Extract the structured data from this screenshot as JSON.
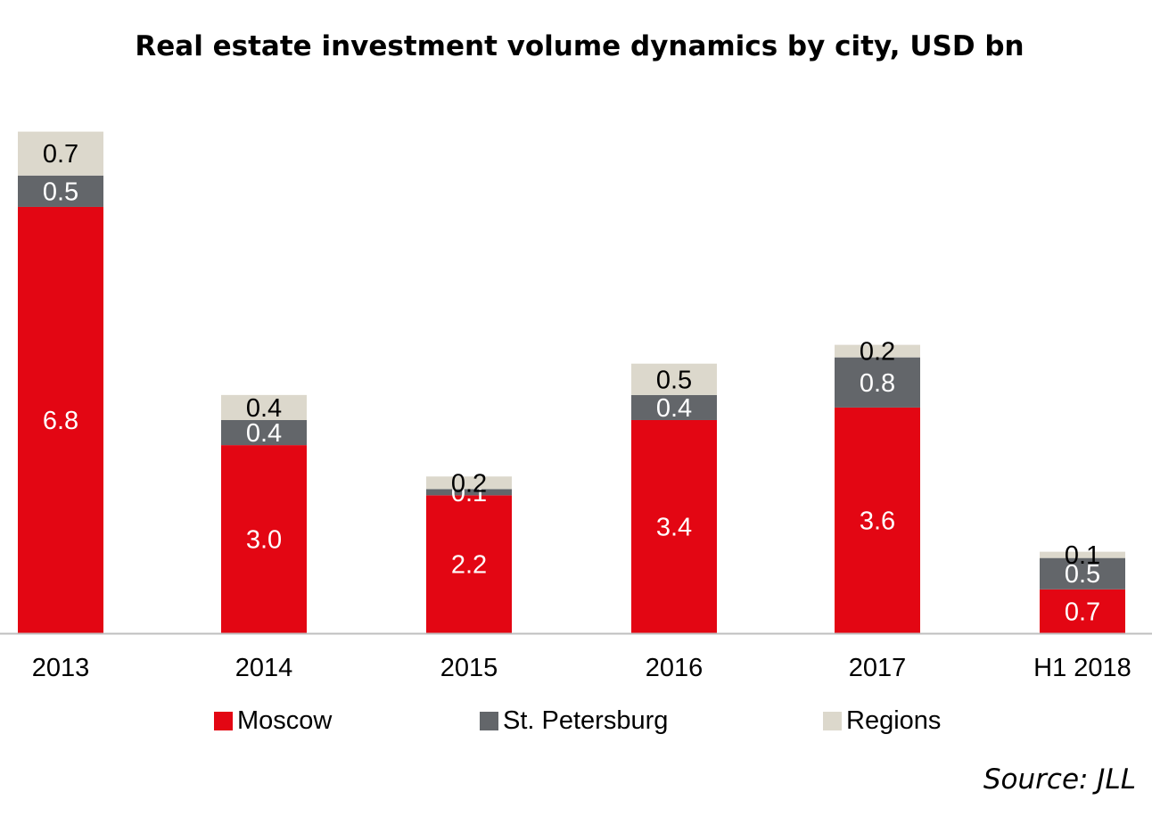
{
  "title": "Real estate investment volume dynamics by city, USD bn",
  "source": "Source: JLL",
  "colors": {
    "Moscow": "#e30613",
    "St. Petersburg": "#63666a",
    "Regions": "#dcd8cc"
  },
  "chart_data": {
    "type": "bar",
    "stacked": true,
    "title": "Real estate investment volume dynamics by city, USD bn",
    "categories": [
      "2013",
      "2014",
      "2015",
      "2016",
      "2017",
      "H1 2018"
    ],
    "series": [
      {
        "name": "Moscow",
        "values": [
          6.8,
          3.0,
          2.2,
          3.4,
          3.6,
          0.7
        ],
        "labels": [
          "6.8",
          "3.0",
          "2.2",
          "3.4",
          "3.6",
          "0.7"
        ]
      },
      {
        "name": "St. Petersburg",
        "values": [
          0.5,
          0.4,
          0.1,
          0.4,
          0.8,
          0.5
        ],
        "labels": [
          "0.5",
          "0.4",
          "0.1",
          "0.4",
          "0.8",
          "0.5"
        ]
      },
      {
        "name": "Regions",
        "values": [
          0.7,
          0.4,
          0.2,
          0.5,
          0.2,
          0.1
        ],
        "labels": [
          "0.7",
          "0.4",
          "0.2",
          "0.5",
          "0.2",
          "0.1"
        ]
      }
    ],
    "legend_position": "bottom",
    "grid": false
  }
}
